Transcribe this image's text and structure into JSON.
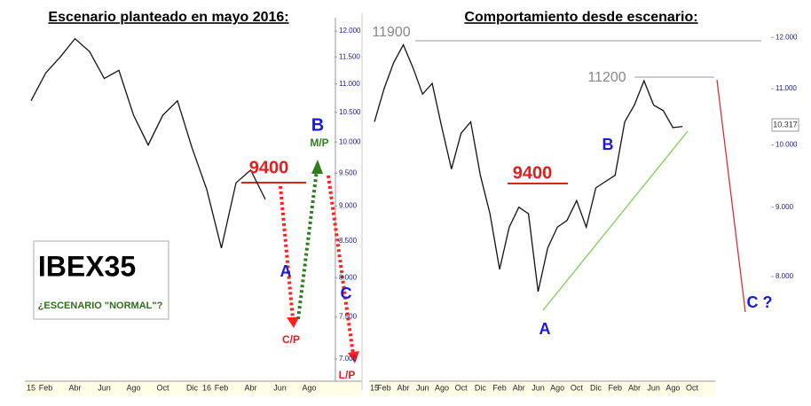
{
  "chart_data": [
    {
      "type": "line",
      "title": "Escenario planteado en mayo 2016:",
      "categories": [
        "15",
        "Feb",
        null,
        "Abr",
        null,
        "Jun",
        null,
        "Ago",
        null,
        "Oct",
        null,
        "Dic",
        "16",
        "Feb",
        null,
        "Abr",
        null,
        "Jun",
        null,
        "Ago",
        null
      ],
      "series": [
        {
          "color": "#111111",
          "values": [
            10700,
            11200,
            11500,
            11850,
            11600,
            11100,
            11250,
            10450,
            9950,
            10450,
            10700,
            9900,
            9250,
            8400,
            9350,
            9550,
            9100,
            null,
            null,
            null,
            null
          ]
        }
      ],
      "log": true,
      "ylim": [
        7000,
        12000
      ],
      "yticks": [
        {
          "value": 12000,
          "label": "12.000"
        },
        {
          "value": 11500,
          "label": "11.500"
        },
        {
          "value": 11000,
          "label": "11.000"
        },
        {
          "value": 10500,
          "label": "10.500"
        },
        {
          "value": 10000,
          "label": "10.000"
        },
        {
          "value": 9500,
          "label": "9.500"
        },
        {
          "value": 9000,
          "label": "9.000"
        },
        {
          "value": 8500,
          "label": "8.500"
        },
        {
          "value": 8000,
          "label": "8.000"
        },
        {
          "value": 7500,
          "label": "7.500"
        },
        {
          "value": 7000,
          "label": "7.000"
        }
      ],
      "annotations": [
        "9400",
        "B",
        "M/P",
        "A",
        "C/P",
        "C",
        "L/P",
        "IBEX35",
        "¿ESCENARIO \"NORMAL\"?"
      ]
    },
    {
      "type": "line",
      "title": "Comportamiento desde escenario:",
      "categories": [
        "15",
        "Feb",
        null,
        "Abr",
        null,
        "Jun",
        null,
        "Ago",
        null,
        "Oct",
        null,
        "Dic",
        null,
        "Feb",
        null,
        "Abr",
        null,
        "Jun",
        null,
        "Ago",
        null,
        "Oct",
        null,
        "Dic",
        null,
        "Feb",
        null,
        "Abr",
        null,
        "Jun",
        null,
        "Ago",
        null,
        "Oct"
      ],
      "series": [
        {
          "color": "#111111",
          "values": [
            10400,
            11000,
            11500,
            11850,
            11400,
            10900,
            11100,
            10300,
            9600,
            10200,
            10400,
            9500,
            8900,
            8100,
            8700,
            9000,
            8900,
            7800,
            8400,
            8700,
            8800,
            9100,
            8700,
            9300,
            9400,
            9500,
            10400,
            10700,
            11150,
            10700,
            10600,
            10300,
            10317,
            null
          ]
        }
      ],
      "log": true,
      "ylim": [
        7000,
        12500
      ],
      "yticks": [
        {
          "value": 12000,
          "label": "12.000"
        },
        {
          "value": 11000,
          "label": "11.000"
        },
        {
          "value": 10000,
          "label": "10.000"
        },
        {
          "value": 9000,
          "label": "9.000"
        },
        {
          "value": 8000,
          "label": "8.000"
        }
      ],
      "annotations": [
        "11900",
        "11200",
        "9400",
        "B",
        "A",
        "C ?",
        "10.317"
      ]
    }
  ]
}
